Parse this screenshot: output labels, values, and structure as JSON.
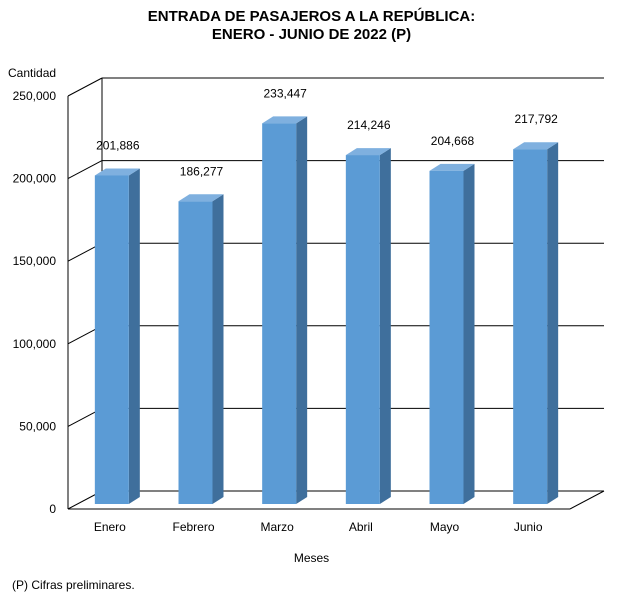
{
  "chart_data": {
    "type": "bar",
    "title": "ENTRADA DE PASAJEROS A LA REPÚBLICA:",
    "subtitle": "ENERO - JUNIO DE 2022 (P)",
    "ylabel": "Cantidad",
    "xlabel": "Meses",
    "categories": [
      "Enero",
      "Febrero",
      "Marzo",
      "Abril",
      "Mayo",
      "Junio"
    ],
    "values": [
      201886,
      186277,
      233447,
      214246,
      204668,
      217792
    ],
    "data_labels": [
      "201,886",
      "186,277",
      "233,447",
      "214,246",
      "204,668",
      "217,792"
    ],
    "ylim": [
      0,
      250000
    ],
    "yticks": [
      0,
      50000,
      100000,
      150000,
      200000,
      250000
    ],
    "ytick_labels": [
      "0",
      "50,000",
      "100,000",
      "150,000",
      "200,000",
      "250,000"
    ],
    "grid": true,
    "colors": {
      "bar_front": "#5b9bd5",
      "bar_side": "#3f6f9c",
      "bar_top": "#7fb0df",
      "grid": "#000000"
    }
  },
  "footnote": "(P) Cifras  preliminares."
}
